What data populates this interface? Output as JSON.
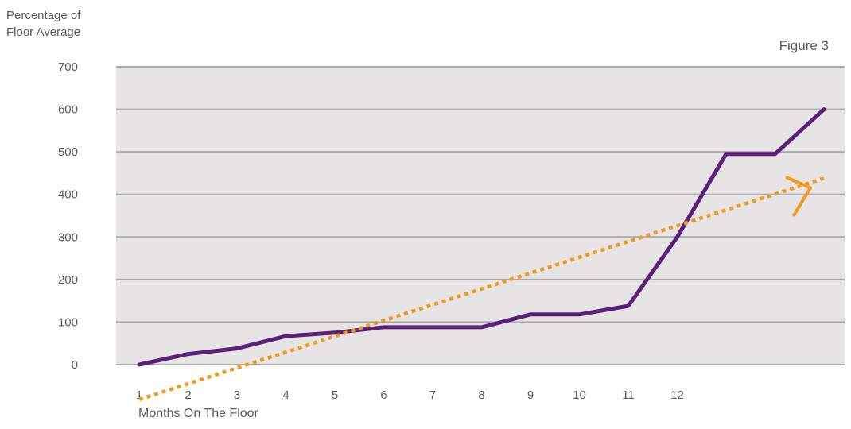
{
  "chart_data": {
    "type": "line",
    "ylabel": [
      "Percentage of",
      "Floor Average"
    ],
    "xlabel": "Months On The Floor",
    "annotation": "Figure 3",
    "ylim": [
      0,
      700
    ],
    "yticks": [
      0,
      100,
      200,
      300,
      400,
      500,
      600,
      700
    ],
    "xticks": [
      1,
      2,
      3,
      4,
      5,
      6,
      7,
      8,
      9,
      10,
      11,
      12
    ],
    "grid": true,
    "plot_background": "#e6e4e5",
    "series": [
      {
        "kind": "solid",
        "color": "#5c1f7a",
        "x": [
          1,
          2,
          3,
          4,
          5,
          6,
          7,
          8,
          9,
          10,
          11,
          12,
          13,
          14,
          15
        ],
        "y": [
          0,
          25,
          38,
          67,
          75,
          88,
          88,
          88,
          118,
          118,
          138,
          300,
          495,
          495,
          600
        ]
      },
      {
        "kind": "dotted-trend",
        "color": "#f29a1c",
        "x": [
          1,
          15
        ],
        "y": [
          -82,
          438
        ],
        "arrow": true
      }
    ]
  }
}
